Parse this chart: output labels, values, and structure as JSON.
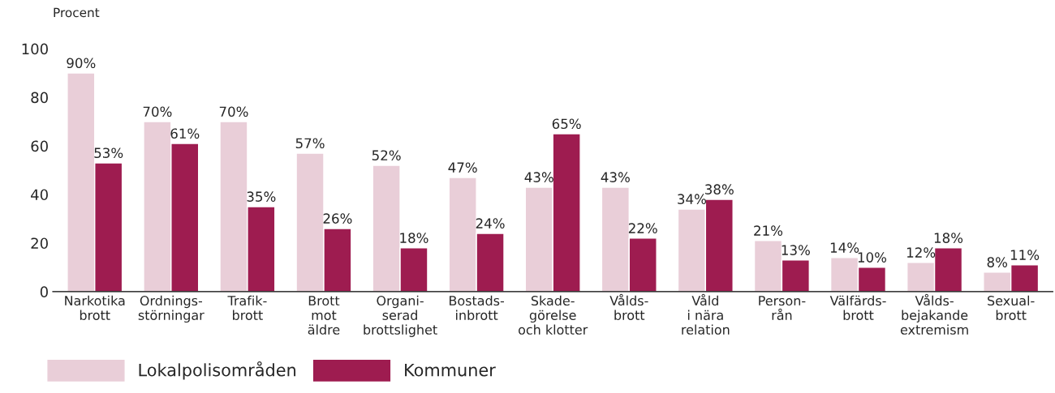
{
  "chart_data": {
    "type": "bar",
    "ylabel": "Procent",
    "categories": [
      "Narkotika\nbrott",
      "Ordnings-\nstörningar",
      "Trafik-\nbrott",
      "Brott\nmot\näldre",
      "Organi-\nserad\nbrottslighet",
      "Bostads-\ninbrott",
      "Skade-\ngörelse\noch klotter",
      "Vålds-\nbrott",
      "Våld\ni nära\nrelation",
      "Person-\nrån",
      "Välfärds-\nbrott",
      "Vålds-\nbejakande\nextremism",
      "Sexual-\nbrott"
    ],
    "series": [
      {
        "name": "Lokalpolisområden",
        "color": "#e9ced8",
        "values": [
          90,
          70,
          70,
          57,
          52,
          47,
          43,
          43,
          34,
          21,
          14,
          12,
          8
        ],
        "value_labels": [
          "90%",
          "70%",
          "70%",
          "57%",
          "52%",
          "47%",
          "43%",
          "43%",
          "34%",
          "21%",
          "14%",
          "12%",
          "8%"
        ]
      },
      {
        "name": "Kommuner",
        "color": "#9e1c50",
        "values": [
          53,
          61,
          35,
          26,
          18,
          24,
          65,
          22,
          38,
          13,
          10,
          18,
          11
        ],
        "value_labels": [
          "53%",
          "61%",
          "35%",
          "26%",
          "18%",
          "24%",
          "65%",
          "22%",
          "38%",
          "13%",
          "10%",
          "18%",
          "11%"
        ]
      }
    ],
    "ylim": [
      0,
      100
    ],
    "yticks": [
      0,
      20,
      40,
      60,
      80,
      100
    ],
    "grid": false,
    "legend": "bottom left"
  }
}
